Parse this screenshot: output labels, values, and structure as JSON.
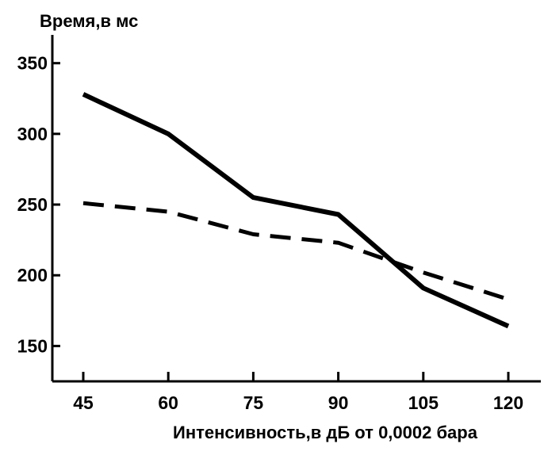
{
  "chart_data": {
    "type": "line",
    "ylabel": "Время,в мс",
    "xlabel": "Интенсивность,в дБ от 0,0002 бара",
    "x": [
      45,
      60,
      75,
      90,
      105,
      120
    ],
    "xticks": [
      "45",
      "60",
      "75",
      "90",
      "105",
      "120"
    ],
    "yticks": [
      150,
      200,
      250,
      300,
      350
    ],
    "ylim": [
      125,
      370
    ],
    "grid": false,
    "series": [
      {
        "style": "solid",
        "color": "#000000",
        "values": [
          328,
          300,
          255,
          243,
          191,
          164
        ]
      },
      {
        "style": "dashed",
        "color": "#000000",
        "values": [
          251,
          245,
          229,
          223,
          202,
          183
        ]
      }
    ]
  }
}
